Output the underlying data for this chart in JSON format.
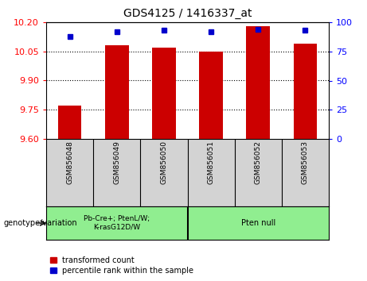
{
  "title": "GDS4125 / 1416337_at",
  "samples": [
    "GSM856048",
    "GSM856049",
    "GSM856050",
    "GSM856051",
    "GSM856052",
    "GSM856053"
  ],
  "red_values": [
    9.77,
    10.08,
    10.07,
    10.05,
    10.18,
    10.09
  ],
  "blue_values": [
    88,
    92,
    93,
    92,
    94,
    93
  ],
  "ylim_left": [
    9.6,
    10.2
  ],
  "ylim_right": [
    0,
    100
  ],
  "yticks_left": [
    9.6,
    9.75,
    9.9,
    10.05,
    10.2
  ],
  "yticks_right": [
    0,
    25,
    50,
    75,
    100
  ],
  "bar_color": "#cc0000",
  "dot_color": "#0000cc",
  "group1_label": "Pb-Cre+; PtenL/W;\nK-rasG12D/W",
  "group2_label": "Pten null",
  "group1_indices": [
    0,
    1,
    2
  ],
  "group2_indices": [
    3,
    4,
    5
  ],
  "group_bg_color": "#90ee90",
  "sample_bg_color": "#d3d3d3",
  "legend_red": "transformed count",
  "legend_blue": "percentile rank within the sample",
  "genotype_label": "genotype/variation"
}
